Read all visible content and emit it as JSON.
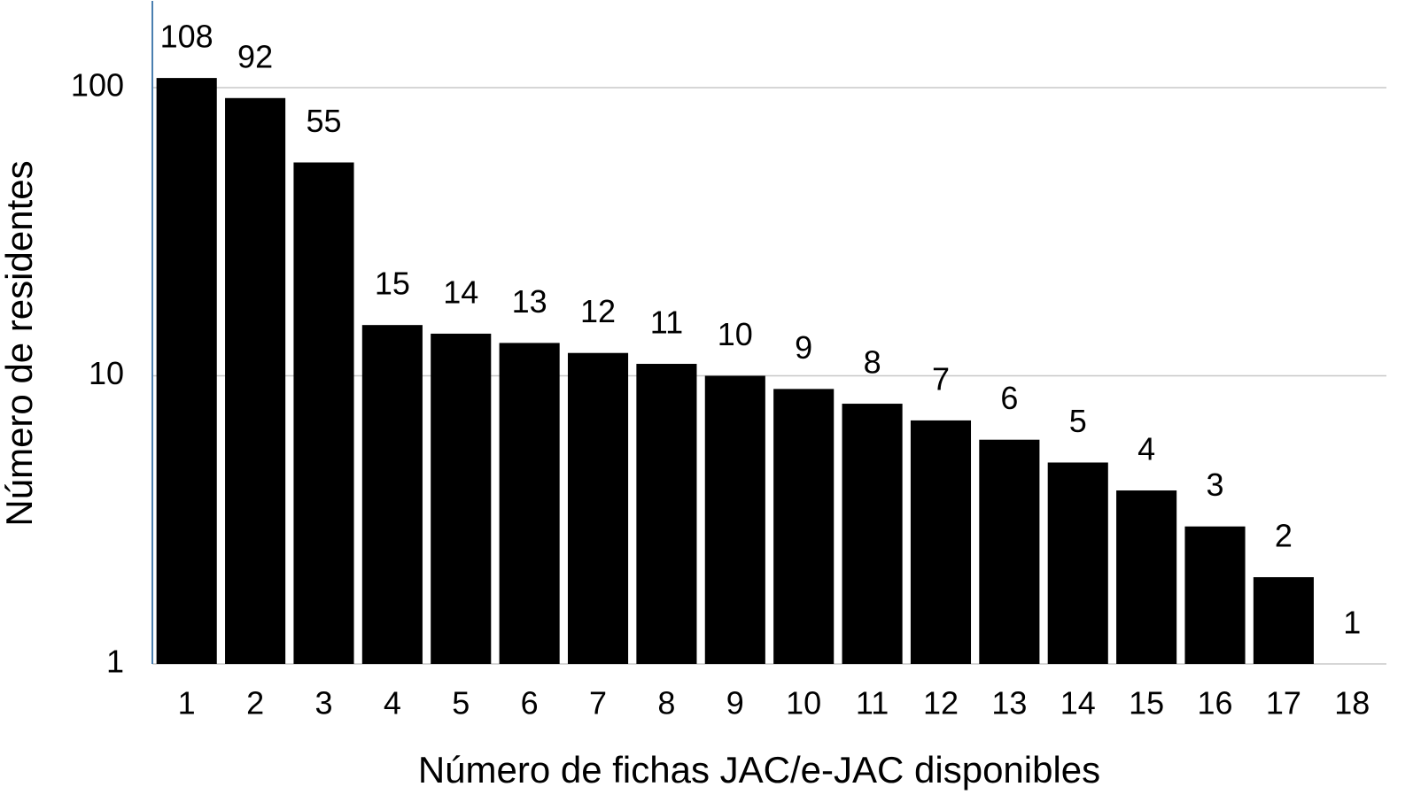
{
  "chart_data": {
    "type": "bar",
    "x_label": "Número de fichas JAC/e-JAC disponibles",
    "y_label": "Número de residentes",
    "categories": [
      "1",
      "2",
      "3",
      "4",
      "5",
      "6",
      "7",
      "8",
      "9",
      "10",
      "11",
      "12",
      "13",
      "14",
      "15",
      "16",
      "17",
      "18"
    ],
    "values": [
      108,
      92,
      55,
      15,
      14,
      13,
      12,
      11,
      10,
      9,
      8,
      7,
      6,
      5,
      4,
      3,
      2,
      1
    ],
    "color": "#000000",
    "log_scale": true,
    "ylim": [
      1,
      200
    ],
    "yticks": [
      1,
      10,
      100
    ],
    "grid": true
  }
}
